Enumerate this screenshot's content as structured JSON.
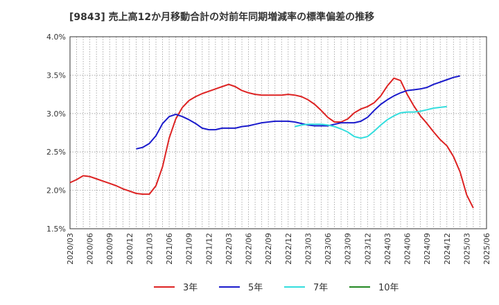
{
  "chart_data": {
    "type": "line",
    "title": "[9843]  売上高12か月移動合計の対前年同期増減率の標準偏差の推移",
    "xlabel": "",
    "ylabel": "",
    "ylim": [
      1.5,
      4.0
    ],
    "yticks": [
      1.5,
      2.0,
      2.5,
      3.0,
      3.5,
      4.0
    ],
    "ytick_labels": [
      "1.5%",
      "2.0%",
      "2.5%",
      "3.0%",
      "3.5%",
      "4.0%"
    ],
    "xlim": [
      "2020-03",
      "2025-06"
    ],
    "xtick_labels": [
      "2020/03",
      "2020/06",
      "2020/09",
      "2020/12",
      "2021/03",
      "2021/06",
      "2021/09",
      "2021/12",
      "2022/03",
      "2022/06",
      "2022/09",
      "2022/12",
      "2023/03",
      "2023/06",
      "2023/09",
      "2023/12",
      "2024/03",
      "2024/06",
      "2024/09",
      "2024/12",
      "2025/03",
      "2025/06"
    ],
    "grid": true,
    "legend_position": "bottom",
    "start_month": "2020-03",
    "series": [
      {
        "name": "3年",
        "color": "#dd2222",
        "start_index": 0,
        "values": [
          2.1,
          2.14,
          2.19,
          2.18,
          2.15,
          2.12,
          2.09,
          2.06,
          2.02,
          1.99,
          1.96,
          1.95,
          1.95,
          2.06,
          2.31,
          2.68,
          2.93,
          3.08,
          3.17,
          3.22,
          3.26,
          3.29,
          3.32,
          3.35,
          3.38,
          3.35,
          3.3,
          3.27,
          3.25,
          3.24,
          3.24,
          3.24,
          3.24,
          3.25,
          3.24,
          3.22,
          3.18,
          3.12,
          3.04,
          2.95,
          2.89,
          2.89,
          2.93,
          3.01,
          3.06,
          3.09,
          3.14,
          3.23,
          3.36,
          3.46,
          3.43,
          3.25,
          3.1,
          2.97,
          2.87,
          2.76,
          2.66,
          2.58,
          2.44,
          2.24,
          1.94,
          1.77
        ]
      },
      {
        "name": "5年",
        "color": "#1a1acc",
        "start_index": 10,
        "values": [
          2.54,
          2.56,
          2.61,
          2.71,
          2.87,
          2.96,
          2.99,
          2.96,
          2.92,
          2.87,
          2.81,
          2.79,
          2.79,
          2.81,
          2.81,
          2.81,
          2.83,
          2.84,
          2.86,
          2.88,
          2.89,
          2.9,
          2.9,
          2.9,
          2.89,
          2.87,
          2.85,
          2.84,
          2.84,
          2.84,
          2.86,
          2.88,
          2.88,
          2.88,
          2.9,
          2.95,
          3.04,
          3.12,
          3.18,
          3.23,
          3.27,
          3.3,
          3.31,
          3.32,
          3.34,
          3.38,
          3.41,
          3.44,
          3.47,
          3.49
        ]
      },
      {
        "name": "7年",
        "color": "#33dddd",
        "start_index": 34,
        "values": [
          2.83,
          2.85,
          2.86,
          2.86,
          2.86,
          2.85,
          2.83,
          2.8,
          2.76,
          2.7,
          2.68,
          2.7,
          2.77,
          2.85,
          2.92,
          2.97,
          3.01,
          3.02,
          3.02,
          3.03,
          3.05,
          3.07,
          3.08,
          3.09
        ]
      },
      {
        "name": "10年",
        "color": "#228822",
        "start_index": 0,
        "values": []
      }
    ]
  }
}
